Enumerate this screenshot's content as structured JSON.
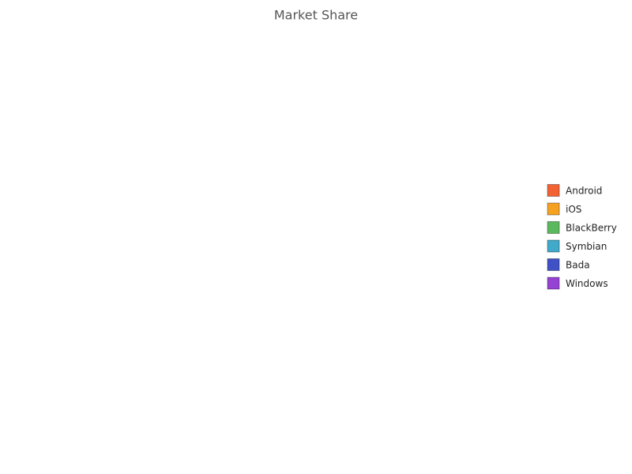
{
  "chart_data": {
    "type": "pie",
    "title": "Market Share",
    "categories": [
      "Android",
      "iOS",
      "BlackBerry",
      "Symbian",
      "Bada",
      "Windows"
    ],
    "colors": [
      "#f26232",
      "#f5a122",
      "#5cb85c",
      "#41a9c9",
      "#3f51c5",
      "#9541d3"
    ],
    "legend": "right"
  }
}
